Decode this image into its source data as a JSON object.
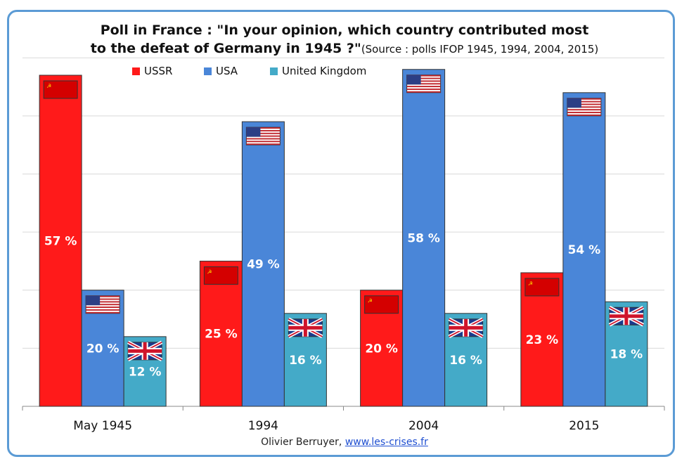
{
  "title_line1": "Poll in France : \"In your opinion, which country contributed most",
  "title_line2": "to the defeat of Germany in 1945 ?\"",
  "title_source": "(Source : polls IFOP 1945, 1994, 2004, 2015)",
  "credit_author": "Olivier Berruyer,",
  "credit_link": "www.les-crises.fr",
  "colors": {
    "USSR": "#ff1a1a",
    "USA": "#4a86d8",
    "United Kingdom": "#44aac8"
  },
  "chart_data": {
    "type": "bar",
    "categories": [
      "May 1945",
      "1994",
      "2004",
      "2015"
    ],
    "series": [
      {
        "name": "USSR",
        "values": [
          57,
          25,
          20,
          23
        ],
        "labels": [
          "57 %",
          "25 %",
          "20 %",
          "23 %"
        ]
      },
      {
        "name": "USA",
        "values": [
          20,
          49,
          58,
          54
        ],
        "labels": [
          "20 %",
          "49 %",
          "58 %",
          "54 %"
        ]
      },
      {
        "name": "United Kingdom",
        "values": [
          12,
          16,
          16,
          18
        ],
        "labels": [
          "12 %",
          "16 %",
          "16 %",
          "18 %"
        ]
      }
    ],
    "ylim": [
      0,
      60
    ],
    "grid": true,
    "legend": "top",
    "xlabel": "",
    "ylabel": ""
  },
  "icons": {
    "USSR": "soviet-flag-icon",
    "USA": "us-flag-icon",
    "United Kingdom": "uk-flag-icon"
  }
}
